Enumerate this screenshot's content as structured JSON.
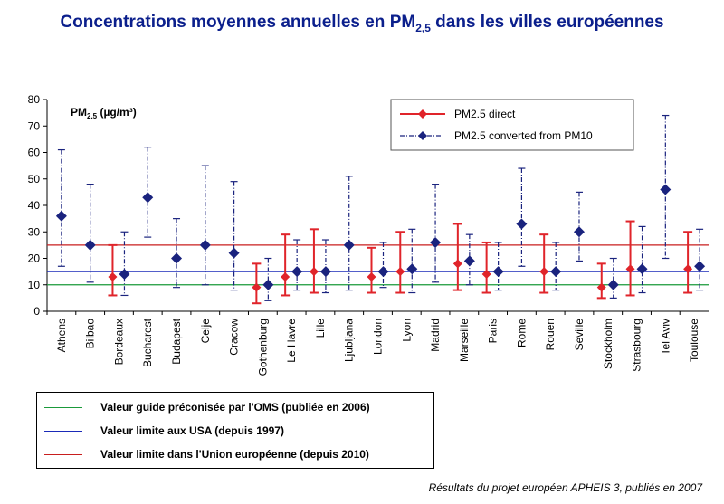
{
  "title": {
    "text": "Concentrations moyennes annuelles en PM",
    "sub": "2,5",
    "suffix": " dans les villes européennes"
  },
  "chart_data": {
    "type": "scatter",
    "ylabel_main": "PM",
    "ylabel_sub": "2.5",
    "ylabel_unit": " (µg/m³)",
    "ylim": [
      0,
      80
    ],
    "yticks": [
      0,
      10,
      20,
      30,
      40,
      50,
      60,
      70,
      80
    ],
    "categories": [
      "Athens",
      "Bilbao",
      "Bordeaux",
      "Bucharest",
      "Budapest",
      "Celje",
      "Cracow",
      "Gothenburg",
      "Le Havre",
      "Lille",
      "Ljubljana",
      "London",
      "Lyon",
      "Madrid",
      "Marseille",
      "Paris",
      "Rome",
      "Rouen",
      "Seville",
      "Stockholm",
      "Strasbourg",
      "Tel Aviv",
      "Toulouse"
    ],
    "legend": {
      "position": "top-right",
      "direct_label": "PM2.5 direct",
      "converted_label": "PM2.5 converted from PM10"
    },
    "series": [
      {
        "key": "direct",
        "name": "PM2.5 direct",
        "color": "#e0242a",
        "points": [
          {
            "city": "Bordeaux",
            "value": 13,
            "low": 6,
            "high": 25
          },
          {
            "city": "Gothenburg",
            "value": 9,
            "low": 3,
            "high": 18
          },
          {
            "city": "Le Havre",
            "value": 13,
            "low": 6,
            "high": 29
          },
          {
            "city": "Lille",
            "value": 15,
            "low": 7,
            "high": 31
          },
          {
            "city": "London",
            "value": 13,
            "low": 7,
            "high": 24
          },
          {
            "city": "Lyon",
            "value": 15,
            "low": 7,
            "high": 30
          },
          {
            "city": "Marseille",
            "value": 18,
            "low": 8,
            "high": 33
          },
          {
            "city": "Paris",
            "value": 14,
            "low": 7,
            "high": 26
          },
          {
            "city": "Rouen",
            "value": 15,
            "low": 7,
            "high": 29
          },
          {
            "city": "Stockholm",
            "value": 9,
            "low": 5,
            "high": 18
          },
          {
            "city": "Strasbourg",
            "value": 16,
            "low": 6,
            "high": 34
          },
          {
            "city": "Toulouse",
            "value": 16,
            "low": 7,
            "high": 30
          }
        ]
      },
      {
        "key": "converted",
        "name": "PM2.5 converted from PM10",
        "color": "#1a237e",
        "points": [
          {
            "city": "Athens",
            "value": 36,
            "low": 17,
            "high": 61
          },
          {
            "city": "Bilbao",
            "value": 25,
            "low": 11,
            "high": 48
          },
          {
            "city": "Bordeaux",
            "value": 14,
            "low": 6,
            "high": 30
          },
          {
            "city": "Bucharest",
            "value": 43,
            "low": 28,
            "high": 62
          },
          {
            "city": "Budapest",
            "value": 20,
            "low": 9,
            "high": 35
          },
          {
            "city": "Celje",
            "value": 25,
            "low": 10,
            "high": 55
          },
          {
            "city": "Cracow",
            "value": 22,
            "low": 8,
            "high": 49
          },
          {
            "city": "Gothenburg",
            "value": 10,
            "low": 4,
            "high": 20
          },
          {
            "city": "Le Havre",
            "value": 15,
            "low": 8,
            "high": 27
          },
          {
            "city": "Lille",
            "value": 15,
            "low": 7,
            "high": 27
          },
          {
            "city": "Ljubljana",
            "value": 25,
            "low": 8,
            "high": 51
          },
          {
            "city": "London",
            "value": 15,
            "low": 9,
            "high": 26
          },
          {
            "city": "Lyon",
            "value": 16,
            "low": 7,
            "high": 31
          },
          {
            "city": "Madrid",
            "value": 26,
            "low": 11,
            "high": 48
          },
          {
            "city": "Marseille",
            "value": 19,
            "low": 10,
            "high": 29
          },
          {
            "city": "Paris",
            "value": 15,
            "low": 8,
            "high": 26
          },
          {
            "city": "Rome",
            "value": 33,
            "low": 17,
            "high": 54
          },
          {
            "city": "Rouen",
            "value": 15,
            "low": 8,
            "high": 26
          },
          {
            "city": "Seville",
            "value": 30,
            "low": 19,
            "high": 45
          },
          {
            "city": "Stockholm",
            "value": 10,
            "low": 5,
            "high": 20
          },
          {
            "city": "Strasbourg",
            "value": 16,
            "low": 7,
            "high": 32
          },
          {
            "city": "Tel Aviv",
            "value": 46,
            "low": 20,
            "high": 74
          },
          {
            "city": "Toulouse",
            "value": 17,
            "low": 8,
            "high": 31
          }
        ]
      }
    ],
    "reference_lines": [
      {
        "key": "who",
        "value": 10,
        "color": "#1a9a3a",
        "label": "Valeur guide préconisée par l'OMS (publiée en 2006)"
      },
      {
        "key": "usa",
        "value": 15,
        "color": "#1a2ab8",
        "label": "Valeur limite aux USA (depuis 1997)"
      },
      {
        "key": "eu",
        "value": 25,
        "color": "#c81e1e",
        "label": "Valeur limite dans l'Union européenne (depuis 2010)"
      }
    ]
  },
  "footnote": "Résultats du projet européen APHEIS 3, publiés en 2007"
}
